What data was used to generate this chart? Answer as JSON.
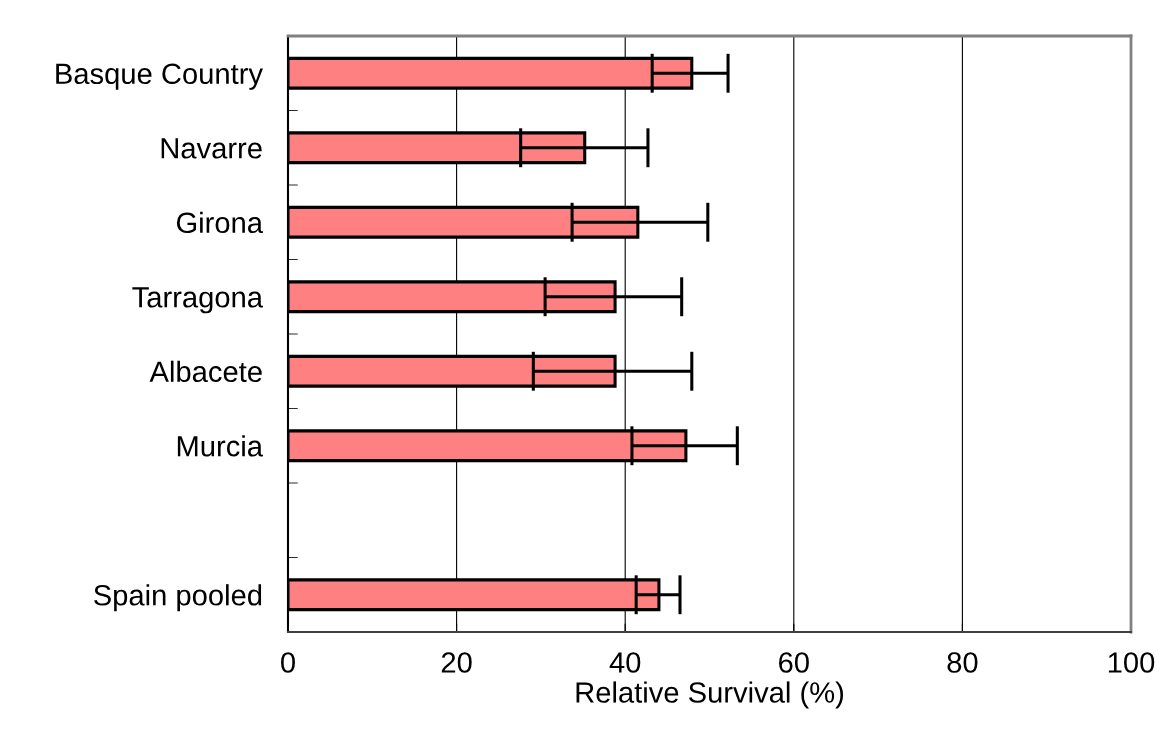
{
  "chart_data": {
    "type": "bar",
    "orientation": "horizontal",
    "categories": [
      "Basque Country",
      "Navarre",
      "Girona",
      "Tarragona",
      "Albacete",
      "Murcia",
      null,
      "Spain pooled"
    ],
    "values": [
      47.9,
      35.2,
      41.5,
      38.8,
      38.8,
      47.2,
      null,
      44.0
    ],
    "errors": [
      [
        43.2,
        52.2
      ],
      [
        27.6,
        42.7
      ],
      [
        33.7,
        49.8
      ],
      [
        30.5,
        46.7
      ],
      [
        29.1,
        47.9
      ],
      [
        40.8,
        53.3
      ],
      null,
      [
        41.3,
        46.5
      ]
    ],
    "color": "#ff8080",
    "xlabel": "Relative Survival (%)",
    "xlim": [
      0,
      100
    ],
    "xticks": [
      0,
      20,
      40,
      60,
      80,
      100
    ],
    "grid": "x"
  }
}
